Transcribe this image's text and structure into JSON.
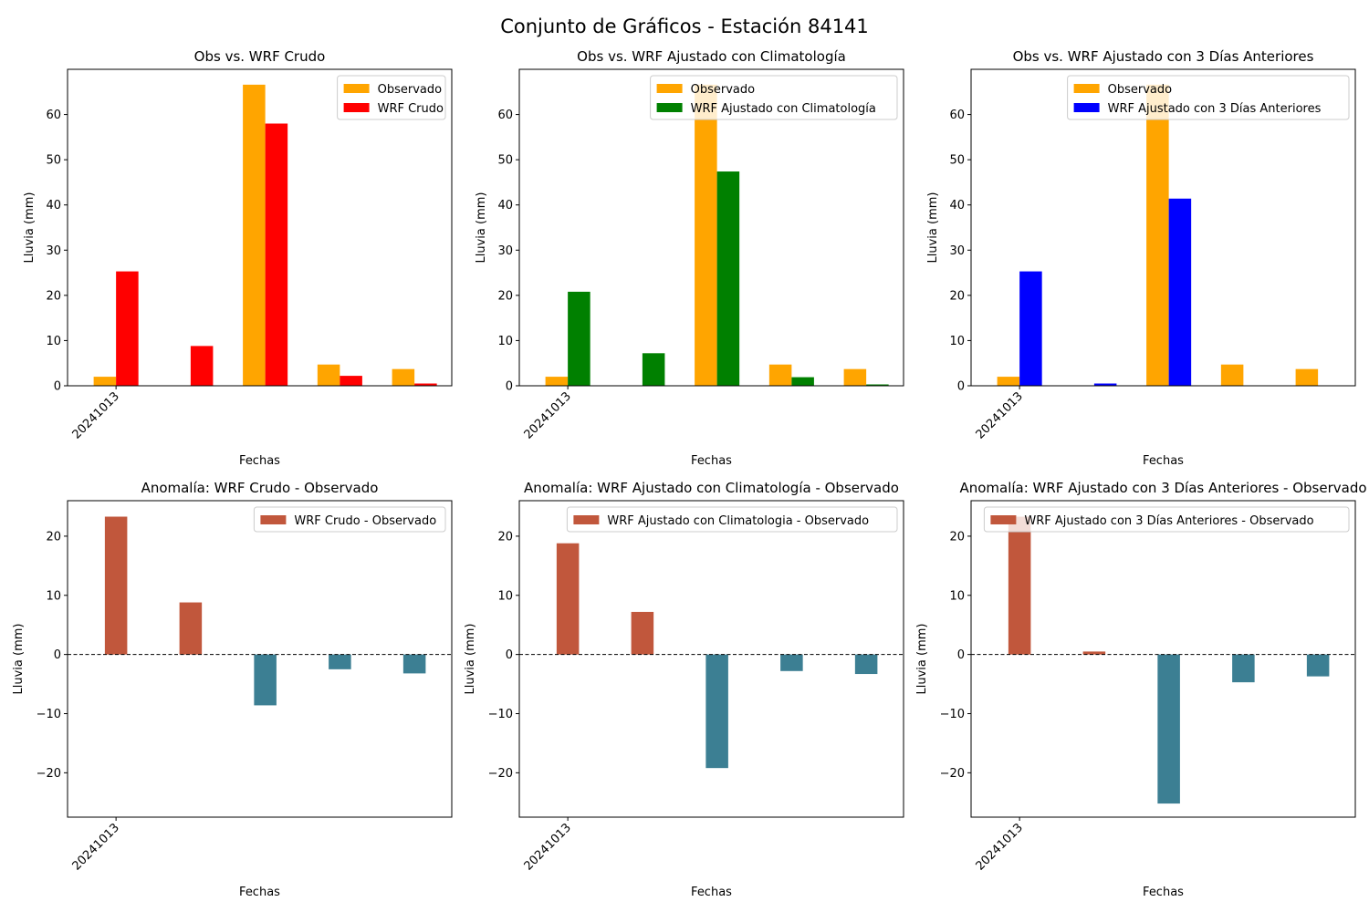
{
  "figure": {
    "suptitle": "Conjunto de Gráficos - Estación 84141"
  },
  "chart_data": [
    {
      "type": "bar",
      "title": "Obs vs. WRF Crudo",
      "xlabel": "Fechas",
      "ylabel": "Lluvia (mm)",
      "ylim": [
        0,
        70
      ],
      "yticks": [
        0,
        10,
        20,
        30,
        40,
        50,
        60
      ],
      "categories": [
        "20241013",
        "",
        "",
        "",
        ""
      ],
      "series": [
        {
          "name": "Observado",
          "color": "#ffa500",
          "values": [
            2.0,
            0.0,
            66.6,
            4.7,
            3.7
          ]
        },
        {
          "name": "WRF Crudo",
          "color": "#ff0000",
          "values": [
            25.3,
            8.8,
            58.0,
            2.2,
            0.5
          ]
        }
      ],
      "legend": "upper-right",
      "grid": false
    },
    {
      "type": "bar",
      "title": "Obs vs. WRF Ajustado con Climatología",
      "xlabel": "Fechas",
      "ylabel": "Lluvia (mm)",
      "ylim": [
        0,
        70
      ],
      "yticks": [
        0,
        10,
        20,
        30,
        40,
        50,
        60
      ],
      "categories": [
        "20241013",
        "",
        "",
        "",
        ""
      ],
      "series": [
        {
          "name": "Observado",
          "color": "#ffa500",
          "values": [
            2.0,
            0.0,
            66.6,
            4.7,
            3.7
          ]
        },
        {
          "name": "WRF Ajustado con Climatología",
          "color": "#008000",
          "values": [
            20.8,
            7.2,
            47.4,
            1.9,
            0.3
          ]
        }
      ],
      "legend": "upper-right",
      "grid": false
    },
    {
      "type": "bar",
      "title": "Obs vs. WRF Ajustado con 3 Días Anteriores",
      "xlabel": "Fechas",
      "ylabel": "Lluvia (mm)",
      "ylim": [
        0,
        70
      ],
      "yticks": [
        0,
        10,
        20,
        30,
        40,
        50,
        60
      ],
      "categories": [
        "20241013",
        "",
        "",
        "",
        ""
      ],
      "series": [
        {
          "name": "Observado",
          "color": "#ffa500",
          "values": [
            2.0,
            0.0,
            66.6,
            4.7,
            3.7
          ]
        },
        {
          "name": "WRF Ajustado con 3 Días Anteriores",
          "color": "#0000ff",
          "values": [
            25.3,
            0.5,
            41.4,
            0.0,
            0.0
          ]
        }
      ],
      "legend": "upper-right",
      "grid": false
    },
    {
      "type": "bar",
      "title": "Anomalía: WRF Crudo - Observado",
      "xlabel": "Fechas",
      "ylabel": "Lluvia (mm)",
      "ylim": [
        -27.5,
        26
      ],
      "yticks": [
        -20,
        -10,
        0,
        10,
        20
      ],
      "categories": [
        "20241013",
        "",
        "",
        "",
        ""
      ],
      "series": [
        {
          "name": "WRF Crudo - Observado",
          "values": [
            23.3,
            8.8,
            -8.6,
            -2.5,
            -3.2
          ]
        }
      ],
      "positive_color": "#c1573c",
      "negative_color": "#3c7f93",
      "zero_line": true,
      "legend": "upper-right",
      "grid": false
    },
    {
      "type": "bar",
      "title": "Anomalía: WRF Ajustado con Climatología - Observado",
      "xlabel": "Fechas",
      "ylabel": "Lluvia (mm)",
      "ylim": [
        -27.5,
        26
      ],
      "yticks": [
        -20,
        -10,
        0,
        10,
        20
      ],
      "categories": [
        "20241013",
        "",
        "",
        "",
        ""
      ],
      "series": [
        {
          "name": "WRF Ajustado con Climatologia - Observado",
          "values": [
            18.8,
            7.2,
            -19.2,
            -2.8,
            -3.3
          ]
        }
      ],
      "positive_color": "#c1573c",
      "negative_color": "#3c7f93",
      "zero_line": true,
      "legend": "upper-right",
      "grid": false
    },
    {
      "type": "bar",
      "title": "Anomalía: WRF Ajustado con 3 Días Anteriores - Observado",
      "xlabel": "Fechas",
      "ylabel": "Lluvia (mm)",
      "ylim": [
        -27.5,
        26
      ],
      "yticks": [
        -20,
        -10,
        0,
        10,
        20
      ],
      "categories": [
        "20241013",
        "",
        "",
        "",
        ""
      ],
      "series": [
        {
          "name": "WRF Ajustado con 3 Días Anteriores - Observado",
          "values": [
            23.3,
            0.5,
            -25.2,
            -4.7,
            -3.7
          ]
        }
      ],
      "positive_color": "#c1573c",
      "negative_color": "#3c7f93",
      "zero_line": true,
      "legend": "upper-right",
      "grid": false
    }
  ]
}
